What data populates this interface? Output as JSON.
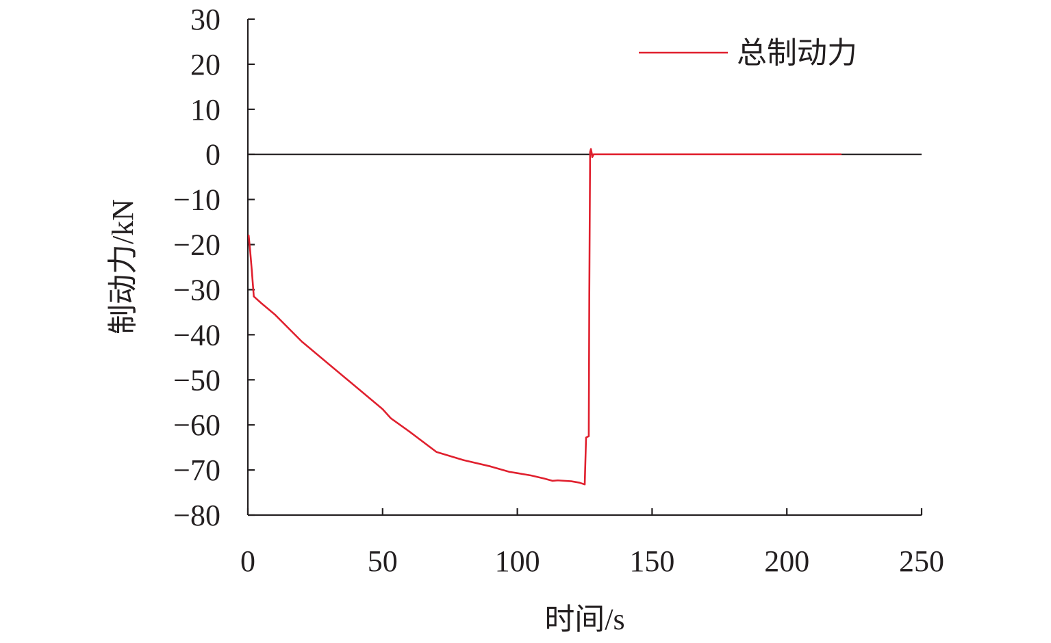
{
  "chart_data": {
    "type": "line",
    "xlabel": "时间/s",
    "ylabel": "制动力/kN",
    "xlim": [
      0,
      250
    ],
    "ylim": [
      -80,
      30
    ],
    "x_ticks": [
      0,
      50,
      100,
      150,
      200,
      250
    ],
    "y_ticks": [
      30,
      20,
      10,
      0,
      -10,
      -20,
      -30,
      -40,
      -50,
      -60,
      -70,
      -80
    ],
    "x_tick_labels": [
      "0",
      "50",
      "100",
      "150",
      "200",
      "250"
    ],
    "y_tick_labels": [
      "30",
      "20",
      "10",
      "0",
      "−10",
      "−20",
      "−30",
      "−40",
      "−50",
      "−60",
      "−70",
      "−80"
    ],
    "grid": false,
    "legend_position": "top-right",
    "series": [
      {
        "name": "总制动力",
        "color": "#e0202e",
        "points": [
          [
            0.3,
            -18
          ],
          [
            0.8,
            -21
          ],
          [
            1.5,
            -26
          ],
          [
            2.2,
            -31.5
          ],
          [
            5,
            -33
          ],
          [
            10,
            -35.5
          ],
          [
            20,
            -41.5
          ],
          [
            30,
            -46.5
          ],
          [
            40,
            -51.5
          ],
          [
            50,
            -56.5
          ],
          [
            53,
            -58.5
          ],
          [
            60,
            -61.5
          ],
          [
            70,
            -66
          ],
          [
            80,
            -67.8
          ],
          [
            90,
            -69.2
          ],
          [
            97,
            -70.4
          ],
          [
            100,
            -70.7
          ],
          [
            105,
            -71.2
          ],
          [
            110,
            -71.9
          ],
          [
            113,
            -72.4
          ],
          [
            115,
            -72.3
          ],
          [
            120,
            -72.5
          ],
          [
            123,
            -72.8
          ],
          [
            125,
            -73.2
          ],
          [
            125.5,
            -62.8
          ],
          [
            126.5,
            -62.5
          ],
          [
            126.7,
            -31
          ],
          [
            127.0,
            0.5
          ],
          [
            127.3,
            1.2
          ],
          [
            127.6,
            0.3
          ],
          [
            127.8,
            -0.6
          ],
          [
            128.3,
            0
          ],
          [
            150,
            0
          ],
          [
            200,
            0
          ],
          [
            220,
            0
          ]
        ]
      }
    ]
  }
}
